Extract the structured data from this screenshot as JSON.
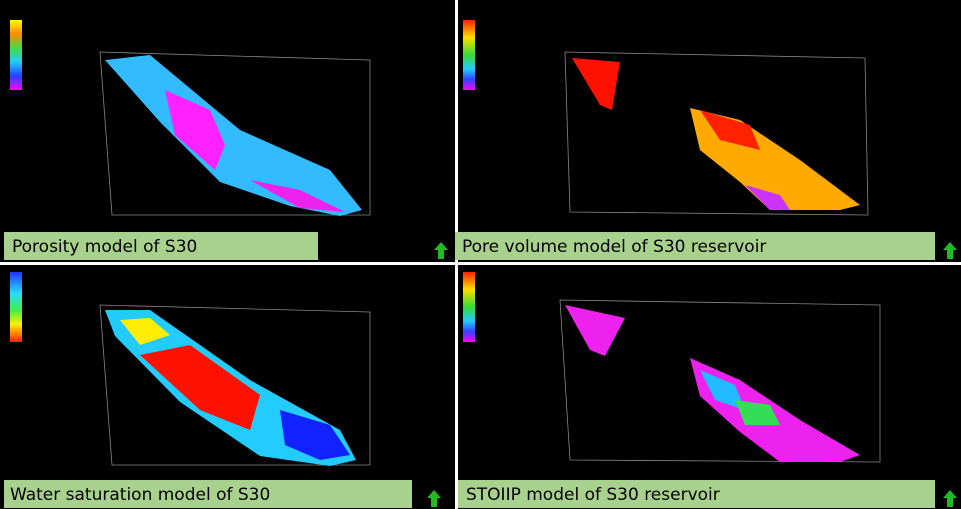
{
  "panels": [
    {
      "caption": "Porosity model of S30"
    },
    {
      "caption": "Pore volume model of S30 reservoir"
    },
    {
      "caption": "Water saturation model of S30"
    },
    {
      "caption": "STOIIP model of S30 reservoir"
    }
  ]
}
